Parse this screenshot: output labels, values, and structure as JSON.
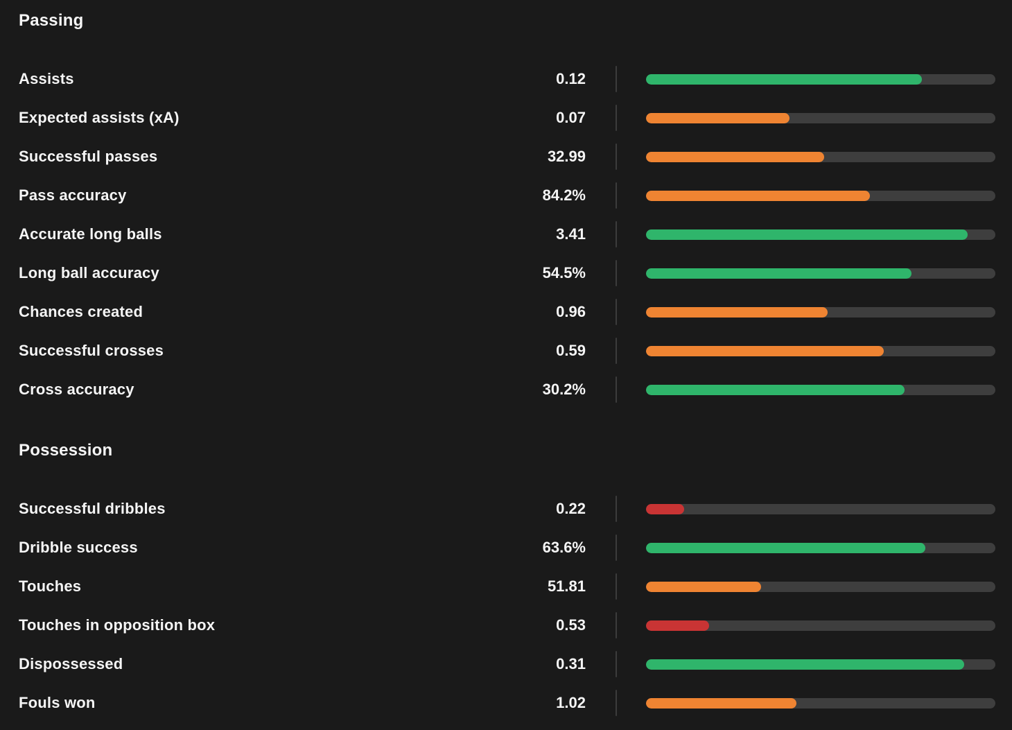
{
  "colors": {
    "background": "#1a1a1a",
    "text": "#f5f5f5",
    "track": "#3e3e3e",
    "divider": "#3c3c3c",
    "green": "#2fb56b",
    "orange": "#ef8432",
    "red": "#c93434"
  },
  "chart_data": [
    {
      "type": "bar",
      "orientation": "horizontal",
      "title": "Passing",
      "categories": [
        "Assists",
        "Expected assists (xA)",
        "Successful passes",
        "Pass accuracy",
        "Accurate long balls",
        "Long ball accuracy",
        "Chances created",
        "Successful crosses",
        "Cross accuracy"
      ],
      "values": [
        0.12,
        0.07,
        32.99,
        84.2,
        3.41,
        54.5,
        0.96,
        0.59,
        30.2
      ],
      "value_labels": [
        "0.12",
        "0.07",
        "32.99",
        "84.2%",
        "3.41",
        "54.5%",
        "0.96",
        "0.59",
        "30.2%"
      ],
      "bar_fill_percent": [
        79,
        41,
        51,
        64,
        92,
        76,
        52,
        68,
        74
      ],
      "bar_colors": [
        "green",
        "orange",
        "orange",
        "orange",
        "green",
        "green",
        "orange",
        "orange",
        "green"
      ],
      "bar_scale": [
        0,
        100
      ],
      "grid": false,
      "legend": false
    },
    {
      "type": "bar",
      "orientation": "horizontal",
      "title": "Possession",
      "categories": [
        "Successful dribbles",
        "Dribble success",
        "Touches",
        "Touches in opposition box",
        "Dispossessed",
        "Fouls won"
      ],
      "values": [
        0.22,
        63.6,
        51.81,
        0.53,
        0.31,
        1.02
      ],
      "value_labels": [
        "0.22",
        "63.6%",
        "51.81",
        "0.53",
        "0.31",
        "1.02"
      ],
      "bar_fill_percent": [
        11,
        80,
        33,
        18,
        91,
        43
      ],
      "bar_colors": [
        "red",
        "green",
        "orange",
        "red",
        "green",
        "orange"
      ],
      "bar_scale": [
        0,
        100
      ],
      "grid": false,
      "legend": false
    }
  ]
}
